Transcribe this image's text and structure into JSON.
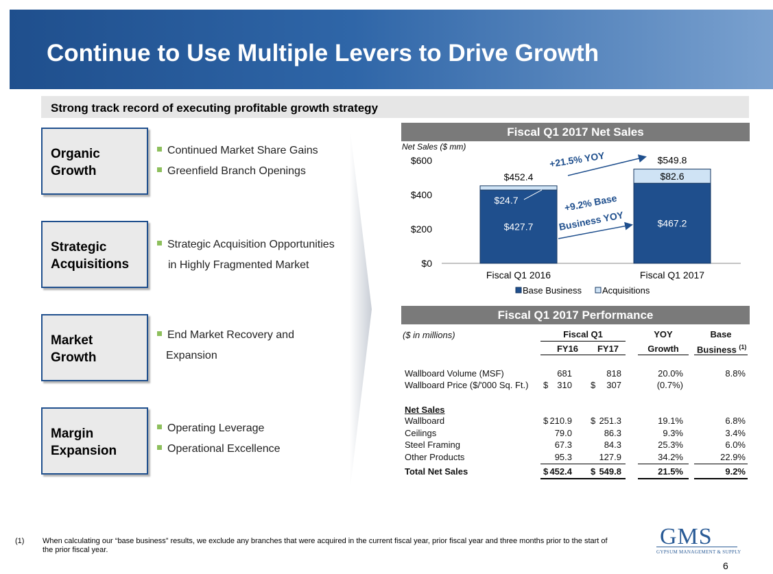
{
  "title": "Continue to Use Multiple Levers to Drive Growth",
  "subtitle": "Strong track record of executing profitable growth strategy",
  "levers": [
    {
      "label": "Organic\nGrowth",
      "bullets": [
        "Continued Market Share Gains",
        "Greenfield Branch Openings"
      ]
    },
    {
      "label": "Strategic\nAcquisitions",
      "bullets": [
        "Strategic Acquisition Opportunities"
      ],
      "continuation": "in Highly Fragmented Market"
    },
    {
      "label": "Market\nGrowth",
      "bullets": [
        "End Market Recovery and"
      ],
      "continuation": "Expansion"
    },
    {
      "label": "Margin\nExpansion",
      "bullets": [
        "Operating Leverage",
        "Operational Excellence"
      ]
    }
  ],
  "net_sales_header": "Fiscal Q1 2017 Net Sales",
  "performance_header": "Fiscal Q1 2017 Performance",
  "chart_data": {
    "type": "bar",
    "stacked": true,
    "title": "Fiscal Q1 2017 Net Sales",
    "ylabel": "Net Sales ($ mm)",
    "ylim": [
      0,
      600
    ],
    "yticks": [
      "$0",
      "$200",
      "$400",
      "$600"
    ],
    "categories": [
      "Fiscal Q1 2016",
      "Fiscal Q1 2017"
    ],
    "series": [
      {
        "name": "Base Business",
        "values": [
          427.7,
          467.2
        ],
        "labels": [
          "$427.7",
          "$467.2"
        ],
        "color": "#1f4f8d"
      },
      {
        "name": "Acquisitions",
        "values": [
          24.7,
          82.6
        ],
        "labels": [
          "$24.7",
          "$82.6"
        ],
        "color": "#cfe3f5"
      }
    ],
    "totals": [
      "$452.4",
      "$549.8"
    ],
    "annotations": {
      "yoy_total": "+21.5% YOY",
      "base_line1": "+9.2% Base",
      "base_line2": "Business YOY"
    },
    "legend": "bottom"
  },
  "performance": {
    "units": "($ in millions)",
    "group_header": "Fiscal Q1",
    "col_fy16": "FY16",
    "col_fy17": "FY17",
    "col_yoy_top": "YOY",
    "col_yoy_bottom": "Growth",
    "col_base_top": "Base",
    "col_base_bottom": "Business",
    "col_base_sup": "(1)",
    "rows_top": [
      {
        "label": "Wallboard Volume (MSF)",
        "d16": "",
        "fy16": "681",
        "d17": "",
        "fy17": "818",
        "yoy": "20.0%",
        "base": "8.8%"
      },
      {
        "label": "Wallboard Price ($/'000 Sq. Ft.)",
        "d16": "$",
        "fy16": "310",
        "d17": "$",
        "fy17": "307",
        "yoy": "(0.7%)",
        "base": ""
      }
    ],
    "net_sales_label": "Net Sales",
    "rows_net": [
      {
        "label": "Wallboard",
        "d16": "$",
        "fy16": "210.9",
        "d17": "$",
        "fy17": "251.3",
        "yoy": "19.1%",
        "base": "6.8%"
      },
      {
        "label": "Ceilings",
        "d16": "",
        "fy16": "79.0",
        "d17": "",
        "fy17": "86.3",
        "yoy": "9.3%",
        "base": "3.4%"
      },
      {
        "label": "Steel Framing",
        "d16": "",
        "fy16": "67.3",
        "d17": "",
        "fy17": "84.3",
        "yoy": "25.3%",
        "base": "6.0%"
      },
      {
        "label": "Other Products",
        "d16": "",
        "fy16": "95.3",
        "d17": "",
        "fy17": "127.9",
        "yoy": "34.2%",
        "base": "22.9%"
      }
    ],
    "total": {
      "label": "Total Net Sales",
      "d16": "$",
      "fy16": "452.4",
      "d17": "$",
      "fy17": "549.8",
      "yoy": "21.5%",
      "base": "9.2%"
    }
  },
  "footnote_num": "(1)",
  "footnote": "When calculating our “base business” results, we exclude any branches that were acquired in the current fiscal year, prior fiscal year and three months prior to the start of the prior fiscal year.",
  "logo": {
    "main": "GMS",
    "sub": "GYPSUM MANAGEMENT & SUPPLY"
  },
  "page_number": "6"
}
